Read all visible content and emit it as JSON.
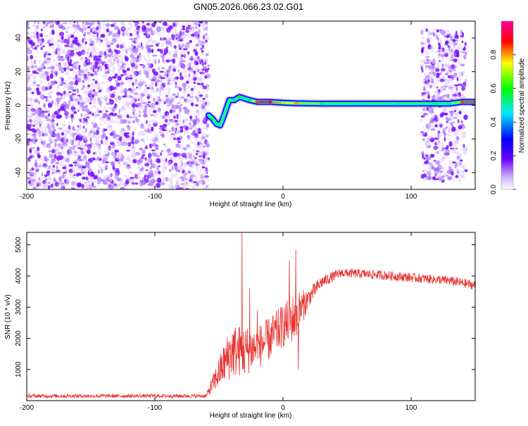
{
  "title": "GN05.2026.066.23.02.G01",
  "chart_data": [
    {
      "type": "heatmap",
      "xlabel": "Height of straight line (km)",
      "ylabel": "Frequency (Hz)",
      "xlim": [
        -200,
        150
      ],
      "ylim": [
        -50,
        50
      ],
      "xticks": [
        -200,
        -100,
        0,
        100
      ],
      "yticks": [
        -40,
        -20,
        0,
        20,
        40
      ],
      "colorbar": {
        "label": "Normalized spectral amplitude",
        "range": [
          0,
          1
        ],
        "ticks": [
          "0.0",
          "0.2",
          "0.4",
          "0.6",
          "0.8"
        ],
        "colors": [
          "#ffffff",
          "#6a00ff",
          "#0000ff",
          "#00e8ff",
          "#00ff00",
          "#ffff00",
          "#ff0000",
          "#ff00a0"
        ]
      },
      "noise_regions": [
        {
          "x": [
            -200,
            -58
          ],
          "f": [
            -50,
            50
          ],
          "amplitude": 0.15
        },
        {
          "x": [
            108,
            143
          ],
          "f": [
            -45,
            45
          ],
          "amplitude": 0.15
        }
      ],
      "signal_track": [
        {
          "x": -58,
          "f": -6,
          "a": 0.45
        },
        {
          "x": -55,
          "f": -8,
          "a": 0.55
        },
        {
          "x": -52,
          "f": -11,
          "a": 0.5
        },
        {
          "x": -49,
          "f": -12,
          "a": 0.45
        },
        {
          "x": -46,
          "f": -6,
          "a": 0.4
        },
        {
          "x": -42,
          "f": 3,
          "a": 0.35
        },
        {
          "x": -38,
          "f": 3,
          "a": 0.5
        },
        {
          "x": -34,
          "f": 5,
          "a": 0.55
        },
        {
          "x": -30,
          "f": 4,
          "a": 0.5
        },
        {
          "x": -26,
          "f": 3,
          "a": 0.55
        },
        {
          "x": -20,
          "f": 2,
          "a": 0.85
        },
        {
          "x": -10,
          "f": 2,
          "a": 0.9
        },
        {
          "x": 0,
          "f": 1.5,
          "a": 0.7
        },
        {
          "x": 10,
          "f": 1.2,
          "a": 0.8
        },
        {
          "x": 30,
          "f": 1,
          "a": 0.55
        },
        {
          "x": 60,
          "f": 1,
          "a": 0.5
        },
        {
          "x": 90,
          "f": 1,
          "a": 0.5
        },
        {
          "x": 108,
          "f": 1,
          "a": 0.45
        },
        {
          "x": 118,
          "f": 1,
          "a": 0.55
        },
        {
          "x": 130,
          "f": 1,
          "a": 0.5
        },
        {
          "x": 140,
          "f": 2,
          "a": 0.85
        },
        {
          "x": 150,
          "f": 2,
          "a": 0.85
        }
      ]
    },
    {
      "type": "line",
      "xlabel": "Height of straight line (km)",
      "ylabel": "SNR (10 * v/v)",
      "xlim": [
        -200,
        150
      ],
      "ylim": [
        0,
        5400
      ],
      "xticks": [
        -200,
        -100,
        0,
        100
      ],
      "yticks": [
        1000,
        2000,
        3000,
        4000,
        5000
      ],
      "color": "#e8322f",
      "envelope": [
        {
          "x": -200,
          "mean": 150,
          "jitter": 60
        },
        {
          "x": -60,
          "mean": 150,
          "jitter": 60
        },
        {
          "x": -50,
          "mean": 900,
          "jitter": 500
        },
        {
          "x": -40,
          "mean": 1600,
          "jitter": 900
        },
        {
          "x": -30,
          "mean": 1600,
          "jitter": 800
        },
        {
          "x": -20,
          "mean": 1700,
          "jitter": 700
        },
        {
          "x": -10,
          "mean": 2000,
          "jitter": 700
        },
        {
          "x": 0,
          "mean": 2400,
          "jitter": 700
        },
        {
          "x": 10,
          "mean": 2700,
          "jitter": 800
        },
        {
          "x": 20,
          "mean": 3300,
          "jitter": 300
        },
        {
          "x": 30,
          "mean": 3800,
          "jitter": 200
        },
        {
          "x": 45,
          "mean": 4100,
          "jitter": 150
        },
        {
          "x": 70,
          "mean": 4050,
          "jitter": 150
        },
        {
          "x": 100,
          "mean": 3950,
          "jitter": 150
        },
        {
          "x": 130,
          "mean": 3850,
          "jitter": 150
        },
        {
          "x": 150,
          "mean": 3700,
          "jitter": 150
        }
      ],
      "spikes": [
        {
          "x": -32,
          "y": 5400
        },
        {
          "x": -30,
          "y": 900
        },
        {
          "x": -26,
          "y": 3600
        },
        {
          "x": -20,
          "y": 2900
        },
        {
          "x": 5,
          "y": 4500
        },
        {
          "x": 10,
          "y": 4850
        },
        {
          "x": 12,
          "y": 1000
        }
      ]
    }
  ]
}
